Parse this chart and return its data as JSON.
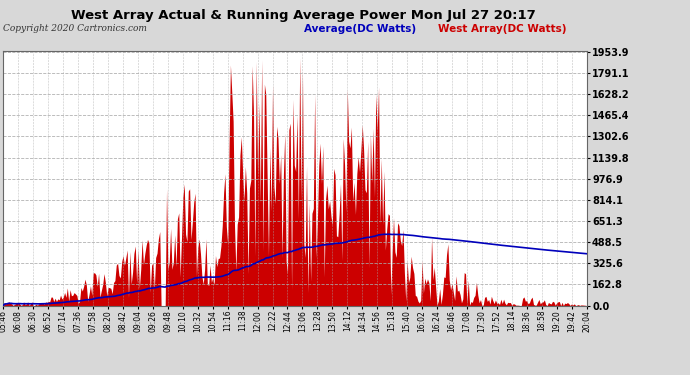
{
  "title": "West Array Actual & Running Average Power Mon Jul 27 20:17",
  "copyright": "Copyright 2020 Cartronics.com",
  "legend_avg": "Average(DC Watts)",
  "legend_west": "West Array(DC Watts)",
  "ylabel_values": [
    0.0,
    162.8,
    325.6,
    488.5,
    651.3,
    814.1,
    976.9,
    1139.8,
    1302.6,
    1465.4,
    1628.2,
    1791.1,
    1953.9
  ],
  "ymax": 1953.9,
  "bg_color": "#d8d8d8",
  "plot_bg_color": "#ffffff",
  "bar_color": "#cc0000",
  "avg_color": "#0000bb",
  "grid_color": "#aaaaaa",
  "title_color": "#000000",
  "copyright_color": "#333333",
  "x_tick_labels": [
    "05:46",
    "06:08",
    "06:30",
    "06:52",
    "07:14",
    "07:36",
    "07:58",
    "08:20",
    "08:42",
    "09:04",
    "09:26",
    "09:48",
    "10:10",
    "10:32",
    "10:54",
    "11:16",
    "11:38",
    "12:00",
    "12:22",
    "12:44",
    "13:06",
    "13:28",
    "13:50",
    "14:12",
    "14:34",
    "14:56",
    "15:18",
    "15:40",
    "16:02",
    "16:24",
    "16:46",
    "17:08",
    "17:30",
    "17:52",
    "18:14",
    "18:36",
    "18:58",
    "19:20",
    "19:42",
    "20:04"
  ]
}
